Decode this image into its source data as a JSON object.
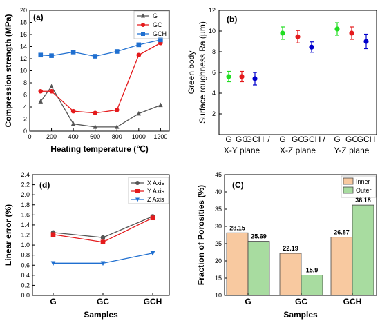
{
  "chart_data": [
    {
      "id": "a",
      "panel_label": "(a)",
      "type": "line",
      "xlabel": "Heating temperature (℃)",
      "ylabel": "Compression strength (MPa)",
      "xlim": [
        0,
        1280
      ],
      "ylim": [
        0,
        20
      ],
      "xticks": [
        "0",
        "200",
        "400",
        "600",
        "800",
        "1000",
        "1200"
      ],
      "yticks": [
        "0",
        "2",
        "4",
        "6",
        "8",
        "10",
        "12",
        "14",
        "16",
        "18",
        "20"
      ],
      "x": [
        100,
        200,
        400,
        600,
        800,
        1000,
        1200
      ],
      "series": [
        {
          "name": "G",
          "color": "#555555",
          "marker": "triangle",
          "values": [
            4.9,
            7.4,
            1.2,
            0.7,
            0.7,
            2.9,
            4.3
          ]
        },
        {
          "name": "GC",
          "color": "#e41a1c",
          "marker": "circle",
          "values": [
            6.6,
            6.6,
            3.3,
            3.0,
            3.5,
            12.6,
            14.6
          ]
        },
        {
          "name": "GCH",
          "color": "#1f6fd0",
          "marker": "square",
          "values": [
            12.6,
            12.5,
            13.1,
            12.4,
            13.2,
            14.3,
            15.1
          ]
        }
      ],
      "legend": "top-right"
    },
    {
      "id": "b",
      "panel_label": "(b)",
      "type": "scatter",
      "ylabel_line1": "Green body",
      "ylabel_line2": "Surface roughness Ra (μm)",
      "ylim": [
        0,
        12
      ],
      "yticks": [
        "2",
        "4",
        "6",
        "8",
        "10",
        "12"
      ],
      "groups": [
        "X-Y plane",
        "X-Z plane",
        "Y-Z plane"
      ],
      "separators": [
        "/",
        "/"
      ],
      "sample_labels": [
        "G",
        "GC",
        "GCH"
      ],
      "colors": [
        "#22dd22",
        "#e41a1c",
        "#0000cc"
      ],
      "values": [
        [
          5.6,
          5.6,
          5.4
        ],
        [
          9.8,
          9.45,
          8.45
        ],
        [
          10.2,
          9.8,
          9.0
        ]
      ],
      "errors": [
        [
          0.5,
          0.5,
          0.6
        ],
        [
          0.6,
          0.6,
          0.5
        ],
        [
          0.6,
          0.6,
          0.7
        ]
      ]
    },
    {
      "id": "d",
      "panel_label": "(d)",
      "type": "line",
      "xlabel": "Samples",
      "ylabel": "Linear error (%)",
      "categories": [
        "G",
        "GC",
        "GCH"
      ],
      "ylim": [
        0,
        2.4
      ],
      "yticks": [
        "0.0",
        "0.2",
        "0.4",
        "0.6",
        "0.8",
        "1.0",
        "1.2",
        "1.4",
        "1.6",
        "1.8",
        "2.0",
        "2.2",
        "2.4"
      ],
      "series": [
        {
          "name": "X Axis",
          "color": "#555555",
          "marker": "circle",
          "values": [
            1.25,
            1.15,
            1.57
          ]
        },
        {
          "name": "Y Axis",
          "color": "#e41a1c",
          "marker": "square",
          "values": [
            1.21,
            1.06,
            1.54
          ]
        },
        {
          "name": "Z Axis",
          "color": "#1f6fd0",
          "marker": "triangle-down",
          "values": [
            0.64,
            0.64,
            0.84
          ]
        }
      ],
      "legend": "top-right"
    },
    {
      "id": "c",
      "panel_label": "(C)",
      "type": "bar",
      "xlabel": "Samples",
      "ylabel": "Fraction of Porosities (%)",
      "categories": [
        "G",
        "GC",
        "GCH"
      ],
      "ylim": [
        10,
        45
      ],
      "yticks": [
        "10",
        "15",
        "20",
        "25",
        "30",
        "35",
        "40",
        "45"
      ],
      "series": [
        {
          "name": "Inner",
          "color": "#f8c9a0",
          "values": [
            28.15,
            22.19,
            26.87
          ],
          "labels": [
            "28.15",
            "22.19",
            "26.87"
          ]
        },
        {
          "name": "Outer",
          "color": "#a8dca0",
          "values": [
            25.69,
            15.9,
            36.18
          ],
          "labels": [
            "25.69",
            "15.9",
            "36.18"
          ]
        }
      ],
      "legend": "top-right"
    }
  ]
}
